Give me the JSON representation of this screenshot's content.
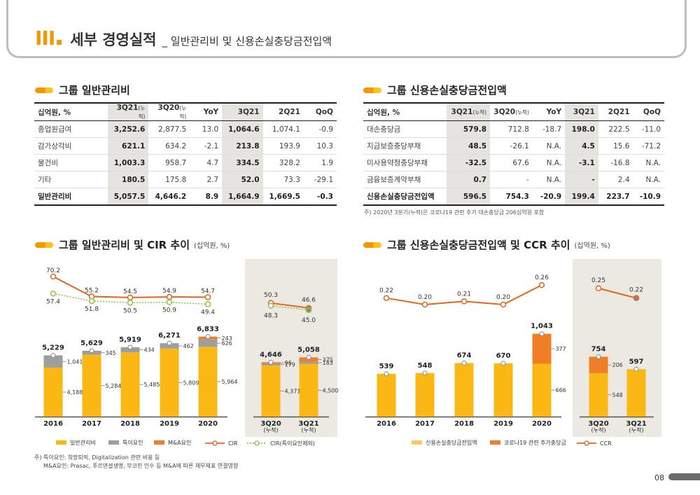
{
  "header": {
    "roman": "III",
    "title": "세부 경영실적",
    "sub": "_ 일반관리비 및 신용손실충당금전입액"
  },
  "tables": {
    "left": {
      "title": "그룹 일반관리비",
      "cols": [
        "십억원, %",
        "3Q21",
        "(누적)",
        "3Q20",
        "(누적)",
        "YoY",
        "3Q21",
        "2Q21",
        "QoQ"
      ],
      "rows": [
        [
          "종업원급여",
          "3,252.6",
          "2,877.5",
          "13.0",
          "1,064.6",
          "1,074.1",
          "-0.9"
        ],
        [
          "감가상각비",
          "621.1",
          "634.2",
          "-2.1",
          "213.8",
          "193.9",
          "10.3"
        ],
        [
          "물건비",
          "1,003.3",
          "958.7",
          "4.7",
          "334.5",
          "328.2",
          "1.9"
        ],
        [
          "기타",
          "180.5",
          "175.8",
          "2.7",
          "52.0",
          "73.3",
          "-29.1"
        ],
        [
          "일반관리비",
          "5,057.5",
          "4,646.2",
          "8.9",
          "1,664.9",
          "1,669.5",
          "-0.3"
        ]
      ]
    },
    "right": {
      "title": "그룹 신용손실충당금전입액",
      "cols": [
        "십억원, %",
        "3Q21",
        "(누적)",
        "3Q20",
        "(누적)",
        "YoY",
        "3Q21",
        "2Q21",
        "QoQ"
      ],
      "rows": [
        [
          "대손충당금",
          "579.8",
          "712.8",
          "-18.7",
          "198.0",
          "222.5",
          "-11.0"
        ],
        [
          "지급보증충당부채",
          "48.5",
          "-26.1",
          "N.A.",
          "4.5",
          "15.6",
          "-71.2"
        ],
        [
          "미사용약정충당부채",
          "-32.5",
          "67.6",
          "N.A.",
          "-3.1",
          "-16.8",
          "N.A."
        ],
        [
          "금융보증계약부채",
          "0.7",
          "-",
          "N.A.",
          "-",
          "2.4",
          "N.A."
        ],
        [
          "신용손실충당금전입액",
          "596.5",
          "754.3",
          "-20.9",
          "199.4",
          "223.7",
          "-10.9"
        ]
      ]
    }
  },
  "note_right": "주) 2020년 3분기(누적)은 코로나19 관련 추가 대손충당금 206십억원 포함",
  "chart_titles": {
    "left": "그룹 일반관리비 및 CIR 추이",
    "left_unit": "(십억원, %)",
    "right": "그룹 신용손실충당금전입액 및 CCR 추이",
    "right_unit": "(십억원, %)"
  },
  "chart_data": [
    {
      "type": "bar",
      "stacked": true,
      "categories": [
        "2016",
        "2017",
        "2018",
        "2019",
        "2020"
      ],
      "cum_categories": [
        [
          "3Q20",
          "(누적)"
        ],
        [
          "3Q21",
          "(누적)"
        ]
      ],
      "series": [
        {
          "name": "일반관리비",
          "color": "#fbb713",
          "values": [
            4188,
            5284,
            5485,
            5809,
            5964
          ],
          "cum_values": [
            4371,
            4500
          ]
        },
        {
          "name": "특이요인",
          "color": "#9e9e9e",
          "values": [
            1041,
            345,
            434,
            462,
            626
          ],
          "cum_values": [
            179,
            183
          ]
        },
        {
          "name": "M&A요인",
          "color": "#f07e26",
          "values": [
            0,
            0,
            0,
            0,
            243
          ],
          "cum_values": [
            96,
            375
          ]
        }
      ],
      "totals": [
        "5,229",
        "5,629",
        "5,919",
        "6,271",
        "6,833"
      ],
      "cum_totals": [
        "4,646",
        "5,058"
      ],
      "segment_labels": [
        [
          "4,188",
          "1,041",
          ""
        ],
        [
          "5,284",
          "345",
          ""
        ],
        [
          "5,485",
          "434",
          ""
        ],
        [
          "5,809",
          "462",
          ""
        ],
        [
          "5,964",
          "626",
          "243"
        ]
      ],
      "cum_segment_labels": [
        [
          "4,371",
          "179",
          "96"
        ],
        [
          "4,500",
          "183",
          "375"
        ]
      ],
      "lines": [
        {
          "name": "CIR",
          "color": "#e8631b",
          "values": [
            70.2,
            55.2,
            54.5,
            54.9,
            54.7
          ],
          "cum_values": [
            50.3,
            46.6
          ]
        },
        {
          "name": "CIR(특이요인제외)",
          "color": "#8cc63f",
          "values": [
            57.4,
            51.8,
            50.5,
            50.9,
            49.4
          ],
          "cum_values": [
            48.3,
            45.0
          ]
        }
      ],
      "legend": [
        "일반관리비",
        "특이요인",
        "M&A요인",
        "CIR",
        "CIR(특이요인제외)"
      ]
    },
    {
      "type": "bar",
      "stacked": true,
      "categories": [
        "2016",
        "2017",
        "2018",
        "2019",
        "2020"
      ],
      "cum_categories": [
        [
          "3Q20",
          "(누적)"
        ],
        [
          "3Q21",
          "(누적)"
        ]
      ],
      "series": [
        {
          "name": "신용손실충당금전입액",
          "color": "#fbb713",
          "values": [
            539,
            548,
            674,
            670,
            666
          ],
          "cum_values": [
            548,
            597
          ]
        },
        {
          "name": "코로나19 관련 추가충당금",
          "color": "#f07e26",
          "values": [
            0,
            0,
            0,
            0,
            377
          ],
          "cum_values": [
            206,
            0
          ]
        }
      ],
      "totals": [
        "539",
        "548",
        "674",
        "670",
        "1,043"
      ],
      "cum_totals": [
        "754",
        "597"
      ],
      "segment_labels": [
        [
          "",
          ""
        ],
        [
          "",
          ""
        ],
        [
          "",
          ""
        ],
        [
          "",
          ""
        ],
        [
          "666",
          "377"
        ]
      ],
      "cum_segment_labels": [
        [
          "548",
          "206"
        ],
        [
          "",
          ""
        ]
      ],
      "lines": [
        {
          "name": "CCR",
          "color": "#e8631b",
          "values": [
            0.22,
            0.2,
            0.21,
            0.2,
            0.26
          ],
          "cum_values": [
            0.25,
            0.22
          ],
          "labels": [
            "0.22",
            "0.20",
            "0.21",
            "0.20",
            "0.26"
          ],
          "cum_labels": [
            "0.25",
            "0.22"
          ]
        }
      ],
      "legend": [
        "신용손실충당금전입액",
        "코로나19 관련 추가충당금",
        "CCR"
      ]
    }
  ],
  "notes": {
    "line1": "주) 특이요인: 희망퇴직, Digitalization 관련 비용 등",
    "line2": "M&A요인: Prasac, 푸르덴셜생명, 부코핀 인수 등 M&A에 따른 재무제표 연결영향"
  },
  "page": "08"
}
